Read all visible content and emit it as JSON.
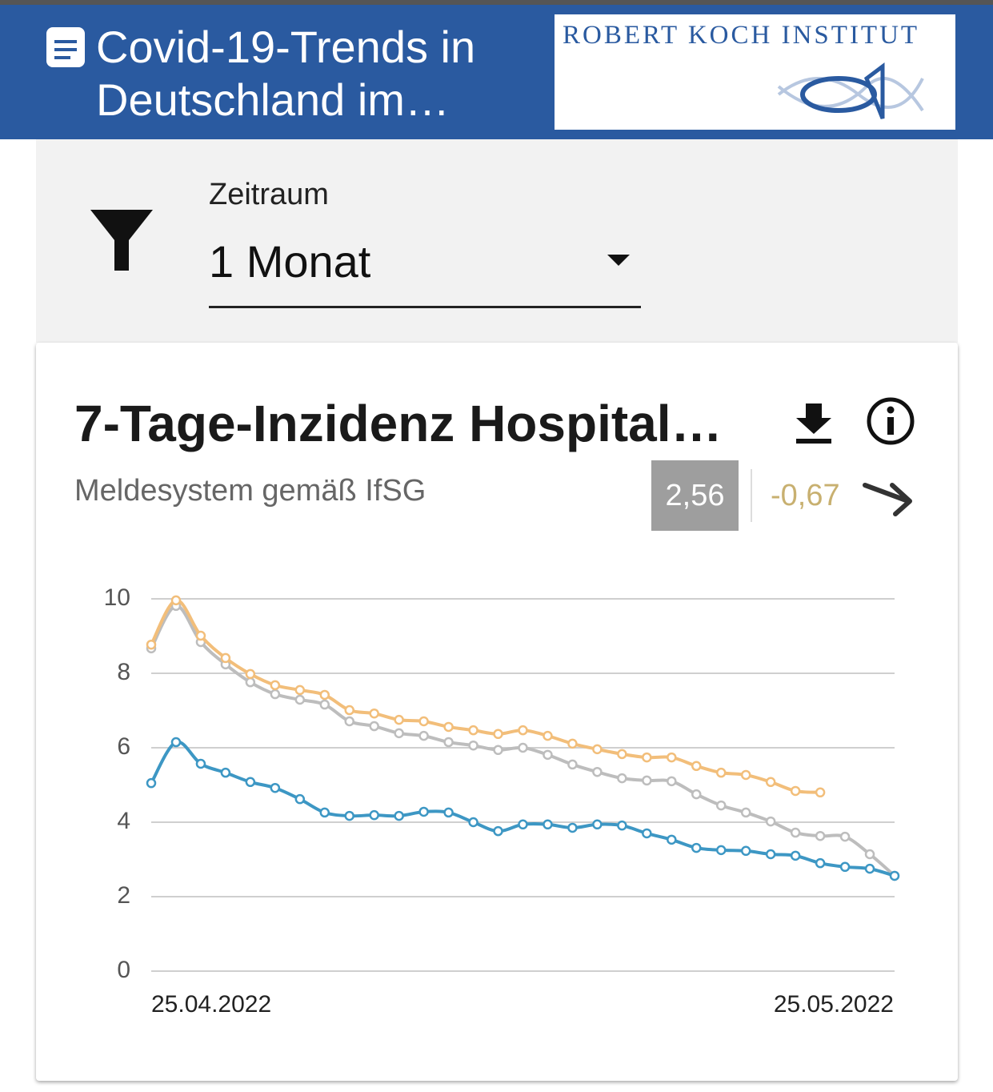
{
  "header": {
    "title": "Covid-19-Trends in Deutschland im…",
    "logo": "ROBERT KOCH INSTITUT"
  },
  "filter": {
    "label": "Zeitraum",
    "value": "1 Monat"
  },
  "card": {
    "title": "7-Tage-Inzidenz Hospital…",
    "subtitle": "Meldesystem gemäß IfSG",
    "current": "2,56",
    "change": "-0,67"
  },
  "chart_data": {
    "type": "line",
    "categories": [
      "25.04.2022",
      null,
      null,
      null,
      null,
      null,
      null,
      null,
      null,
      null,
      null,
      null,
      null,
      null,
      null,
      null,
      null,
      null,
      null,
      null,
      null,
      null,
      null,
      null,
      null,
      null,
      null,
      null,
      null,
      null,
      "25.05.2022"
    ],
    "series": [
      {
        "color": "#bdbdbd",
        "values": [
          8.67,
          9.81,
          8.84,
          8.24,
          7.76,
          7.44,
          7.29,
          7.16,
          6.71,
          6.58,
          6.39,
          6.32,
          6.15,
          6.06,
          5.94,
          6.0,
          5.81,
          5.55,
          5.35,
          5.18,
          5.12,
          5.1,
          4.75,
          4.45,
          4.26,
          4.02,
          3.72,
          3.63,
          3.61,
          3.14,
          2.56
        ]
      },
      {
        "color": "#f2be7a",
        "values": [
          8.77,
          9.96,
          9.01,
          8.41,
          7.98,
          7.68,
          7.55,
          7.42,
          7.01,
          6.92,
          6.75,
          6.71,
          6.56,
          6.47,
          6.37,
          6.47,
          6.32,
          6.11,
          5.96,
          5.83,
          5.74,
          5.74,
          5.51,
          5.33,
          5.27,
          5.08,
          4.84,
          4.8,
          null,
          null,
          null
        ]
      },
      {
        "color": "#3d97c4",
        "values": [
          5.05,
          6.15,
          5.57,
          5.33,
          5.08,
          4.92,
          4.62,
          4.26,
          4.17,
          4.19,
          4.17,
          4.28,
          4.26,
          4.0,
          3.76,
          3.94,
          3.94,
          3.85,
          3.94,
          3.91,
          3.7,
          3.53,
          3.31,
          3.25,
          3.23,
          3.14,
          3.1,
          2.9,
          2.8,
          2.75,
          2.56
        ]
      }
    ],
    "ylim": [
      0,
      10
    ],
    "yticks": [
      0,
      2,
      4,
      6,
      8,
      10
    ],
    "grid": true
  }
}
